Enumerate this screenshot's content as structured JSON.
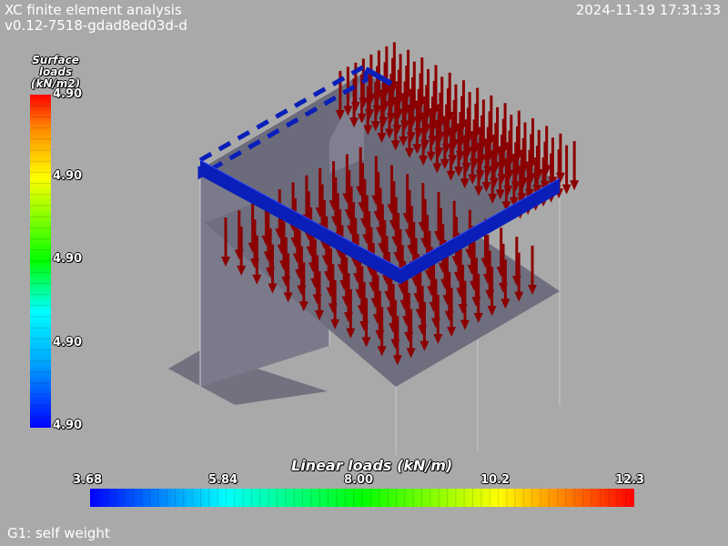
{
  "header": {
    "app_title": "XC finite element analysis",
    "version": "v0.12-7518-gdad8ed03d-d",
    "timestamp": "2024-11-19 17:31:33"
  },
  "surface_legend": {
    "title_line1": "Surface",
    "title_line2": "loads",
    "title_line3": "(kN/m2)",
    "ticks": [
      "4.90",
      "4.90",
      "4.90",
      "4.90",
      "4.90"
    ]
  },
  "linear_legend": {
    "title": "Linear loads (kN/m)",
    "ticks": [
      "3.68",
      "5.84",
      "8.00",
      "10.2",
      "12.3"
    ]
  },
  "load_case": "G1: self weight",
  "colors": {
    "background": "#a9a9a9",
    "surface": "#6b6b7b",
    "beam_load": "#0a1fb8",
    "arrow": "#8b0000"
  }
}
